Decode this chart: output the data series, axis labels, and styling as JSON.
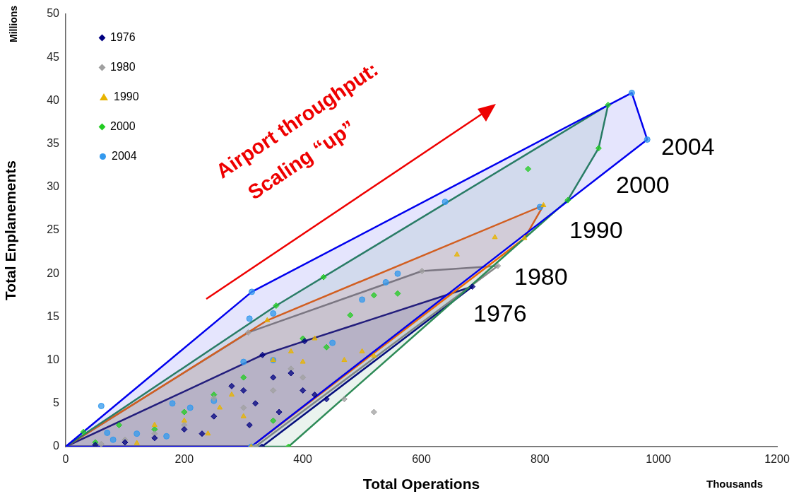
{
  "chart_data": {
    "type": "scatter",
    "xlabel": "Total Operations",
    "ylabel": "Total Enplanements",
    "xlim": [
      0,
      1200
    ],
    "xticks": [
      0,
      200,
      400,
      600,
      800,
      1000,
      1200
    ],
    "ylim": [
      0,
      50
    ],
    "yticks": [
      0,
      5,
      10,
      15,
      20,
      25,
      30,
      35,
      40,
      45,
      50
    ],
    "grid": false,
    "legend": "top left",
    "series": [
      {
        "type": "area",
        "color": "#0000ee",
        "x": [
          0,
          314,
          955,
          981,
          313,
          0
        ],
        "values": [
          0,
          17.9,
          40.9,
          35.5,
          0,
          0
        ]
      },
      {
        "type": "area",
        "color": "#2e8b57",
        "x": [
          0,
          355,
          915,
          899,
          847,
          376,
          0
        ],
        "values": [
          0,
          16.3,
          39.5,
          34.5,
          28.5,
          0,
          0
        ]
      },
      {
        "type": "area",
        "color": "#ff6600",
        "x": [
          0,
          340,
          806,
          774,
          313,
          0
        ],
        "values": [
          0,
          14.6,
          27.9,
          24.1,
          0,
          0
        ]
      },
      {
        "type": "area",
        "color": "#888888",
        "x": [
          0,
          308,
          601,
          729,
          320,
          0
        ],
        "values": [
          0,
          13.2,
          20.3,
          20.9,
          0,
          0
        ]
      },
      {
        "type": "area",
        "color": "#000080",
        "x": [
          0,
          332,
          403,
          686,
          331,
          0
        ],
        "values": [
          0,
          10.6,
          12.2,
          18.5,
          0,
          0
        ]
      },
      {
        "name": "1976",
        "color": "#000080",
        "marker": "diamond",
        "x": [
          686,
          332,
          331,
          403,
          350,
          360,
          300,
          280,
          250,
          200,
          150,
          100,
          50,
          320,
          380,
          400,
          420,
          440,
          230,
          310
        ],
        "values": [
          18.5,
          10.6,
          0,
          12.2,
          8,
          4,
          6.5,
          7,
          3.5,
          2,
          1,
          0.5,
          0.2,
          5,
          8.5,
          6.5,
          6,
          5.5,
          1.5,
          2.5
        ]
      },
      {
        "name": "1980",
        "color": "#a0a0a0",
        "marker": "diamond",
        "x": [
          729,
          601,
          308,
          320,
          250,
          300,
          350,
          380,
          470,
          520,
          200,
          150,
          100,
          60,
          400
        ],
        "values": [
          20.9,
          20.3,
          13.2,
          0,
          5.6,
          4.5,
          6.5,
          9,
          5.5,
          4,
          2.5,
          1.5,
          0.8,
          0.3,
          8
        ]
      },
      {
        "name": "1990",
        "color": "#e8b400",
        "marker": "triangle",
        "x": [
          806,
          774,
          660,
          724,
          340,
          313,
          350,
          420,
          380,
          470,
          520,
          500,
          400,
          260,
          200,
          150,
          280,
          300,
          240,
          120
        ],
        "values": [
          27.9,
          24.1,
          22.2,
          24.2,
          14.6,
          0,
          10,
          12.5,
          11,
          10,
          10.5,
          11,
          9.8,
          4.5,
          3,
          2.5,
          6,
          3.5,
          1.5,
          0.4
        ]
      },
      {
        "name": "2000",
        "color": "#22cc22",
        "marker": "diamond",
        "x": [
          915,
          899,
          847,
          376,
          355,
          435,
          780,
          520,
          560,
          480,
          400,
          440,
          300,
          250,
          200,
          150,
          90,
          50,
          30,
          350
        ],
        "values": [
          39.5,
          34.5,
          28.5,
          0,
          16.3,
          19.6,
          32.1,
          17.5,
          17.7,
          15.2,
          12.5,
          11.5,
          8,
          6,
          4,
          2,
          2.5,
          0.5,
          1.7,
          3
        ]
      },
      {
        "name": "2004",
        "color": "#3399ee",
        "marker": "circle",
        "x": [
          955,
          981,
          314,
          313,
          640,
          800,
          310,
          350,
          560,
          540,
          500,
          450,
          350,
          300,
          250,
          210,
          170,
          120,
          80,
          70,
          180,
          60
        ],
        "values": [
          40.9,
          35.5,
          17.9,
          0,
          28.3,
          27.7,
          14.8,
          15.4,
          20,
          19,
          17,
          12,
          10,
          9.8,
          5.3,
          4.5,
          1.2,
          1.5,
          0.8,
          1.6,
          5,
          4.7
        ]
      }
    ],
    "annotations": [
      "Millions",
      "Thousands",
      "Airport throughput:",
      "Scaling “up”",
      "2004",
      "2000",
      "1990",
      "1980",
      "1976"
    ]
  }
}
